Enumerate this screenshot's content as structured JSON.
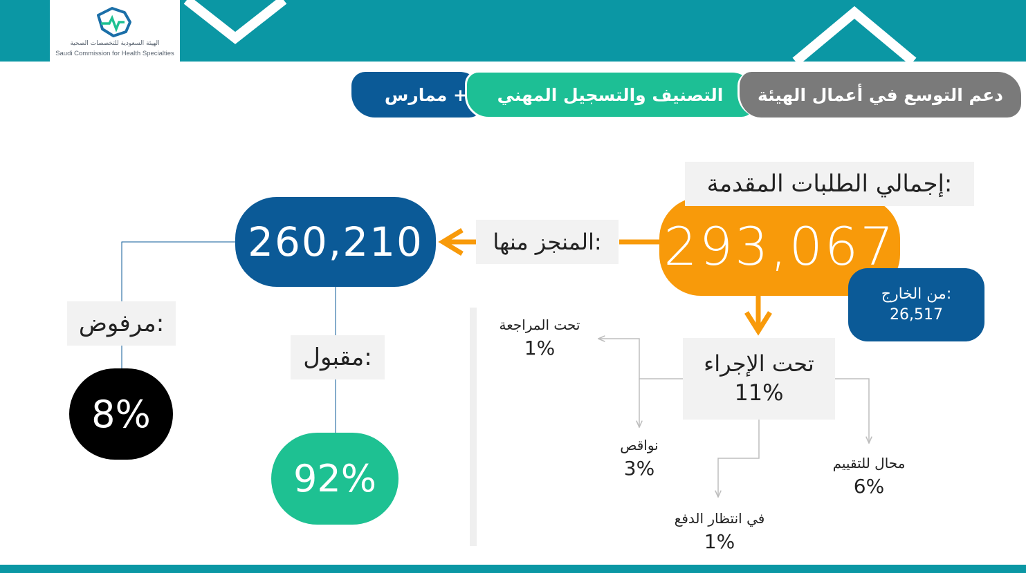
{
  "header": {
    "logo_ar": "الهيئة السعودية للتخصصات الصحية",
    "logo_en": "Saudi Commission for Health Specialties"
  },
  "tabs": [
    {
      "label": "دعم التوسع في أعمال الهيئة",
      "color": "#7a7a7a"
    },
    {
      "label": "التصنيف والتسجيل المهني",
      "color": "#1dbf95"
    },
    {
      "label": "ممارس +",
      "color": "#0b5a97"
    }
  ],
  "total": {
    "label": "إجمالي الطلبات المقدمة:",
    "value": "293,067",
    "color": "#f89a0a"
  },
  "abroad": {
    "label": "من الخارج:",
    "value": "26,517"
  },
  "completed": {
    "label": "المنجز منها:",
    "value": "260,210",
    "color": "#0b5a97"
  },
  "accepted": {
    "label": "مقبول:",
    "value": "92%",
    "color": "#1ec192"
  },
  "rejected": {
    "label": "مرفوض:",
    "value": "8%",
    "color": "#000000"
  },
  "in_progress": {
    "label": "تحت الإجراء",
    "value": "11%"
  },
  "breakdown": {
    "under_review": {
      "label": "تحت المراجعة",
      "value": "1%"
    },
    "missing": {
      "label": "نواقص",
      "value": "3%"
    },
    "payment": {
      "label": "في انتظار الدفع",
      "value": "1%"
    },
    "evaluation": {
      "label": "محال للتقييم",
      "value": "6%"
    }
  }
}
